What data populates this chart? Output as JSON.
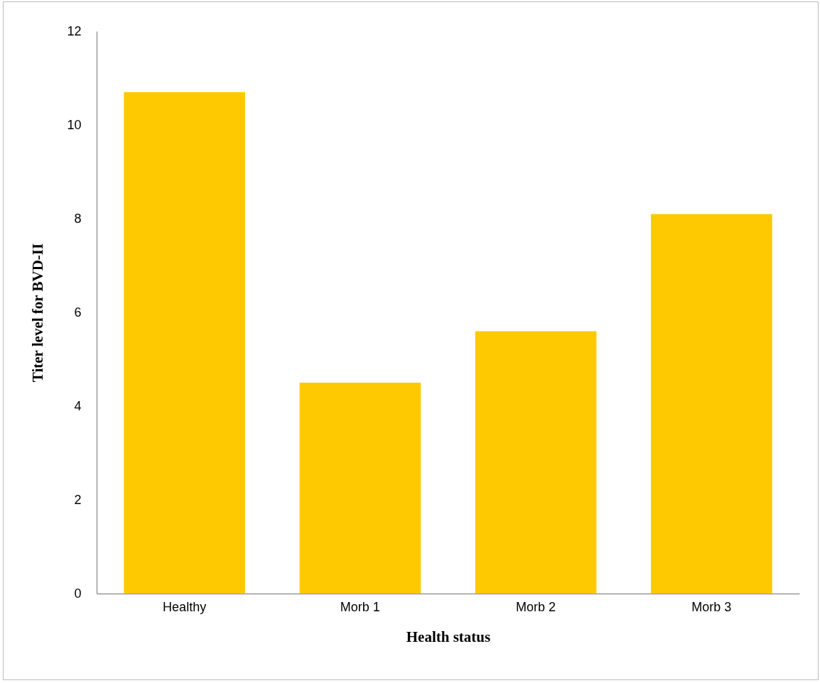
{
  "chart_data": {
    "type": "bar",
    "xlabel": "Health status",
    "ylabel": "Titer level  for BVD-II",
    "categories": [
      "Healthy",
      "Morb 1",
      "Morb 2",
      "Morb 3"
    ],
    "values": [
      10.7,
      4.5,
      5.6,
      8.1
    ],
    "color": "#ffc900",
    "ylim": [
      0,
      12
    ],
    "yticks": [
      0,
      2,
      4,
      6,
      8,
      10,
      12
    ],
    "grid": false
  }
}
